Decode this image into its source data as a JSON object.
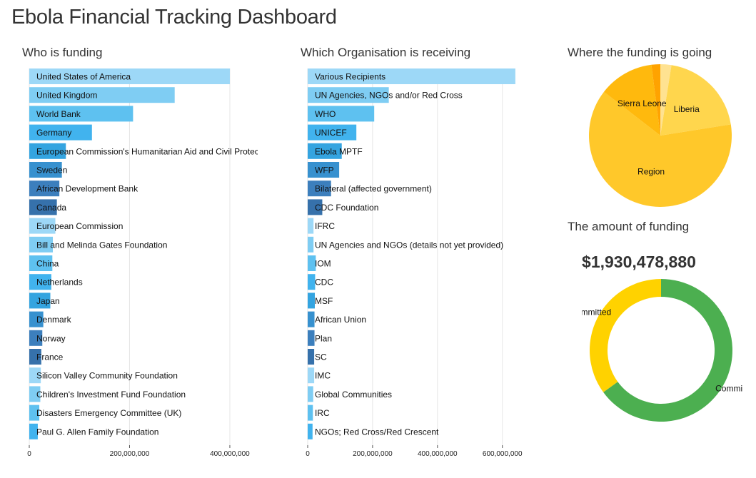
{
  "page": {
    "title": "Ebola Financial Tracking Dashboard",
    "funding_amount": "$1,930,478,880"
  },
  "sections": {
    "donors": "Who is funding",
    "recipients": "Which Organisation is receiving",
    "destinations": "Where the funding is going",
    "amount": "The amount of funding"
  },
  "chart_data": [
    {
      "type": "bar",
      "orientation": "horizontal",
      "title": "Who is funding",
      "categories": [
        "United States of America",
        "United Kingdom",
        "World Bank",
        "Germany",
        "European Commission's Humanitarian Aid and Civil Protection",
        "Sweden",
        "African Development Bank",
        "Canada",
        "European Commission",
        "Bill and Melinda Gates Foundation",
        "China",
        "Netherlands",
        "Japan",
        "Denmark",
        "Norway",
        "France",
        "Silicon Valley Community Foundation",
        "Children's Investment Fund Foundation",
        "Disasters Emergency Committee (UK)",
        "Paul G. Allen Family Foundation"
      ],
      "values": [
        400000000,
        290000000,
        207000000,
        125000000,
        73000000,
        65000000,
        60000000,
        55000000,
        52000000,
        47000000,
        46000000,
        44000000,
        42000000,
        28000000,
        26000000,
        24000000,
        23000000,
        22000000,
        20000000,
        17000000
      ],
      "bar_colors": [
        "#9dd8f7",
        "#7fcdf3",
        "#5ec1f0",
        "#41b3ee",
        "#34a4e0",
        "#3791cf",
        "#3c7fbd",
        "#3671ab",
        "#9dd8f7",
        "#7fcdf3",
        "#5ec1f0",
        "#41b3ee",
        "#34a4e0",
        "#3791cf",
        "#3c7fbd",
        "#3671ab",
        "#9dd8f7",
        "#7fcdf3",
        "#5ec1f0",
        "#41b3ee"
      ],
      "xlim": [
        0,
        420000000
      ],
      "xticks": [
        0,
        200000000,
        400000000
      ],
      "xtick_labels": [
        "0",
        "200,000,000",
        "400,000,000"
      ],
      "grid": true
    },
    {
      "type": "bar",
      "orientation": "horizontal",
      "title": "Which Organisation is receiving",
      "categories": [
        "Various Recipients",
        "UN Agencies, NGOs and/or Red Cross",
        "WHO",
        "UNICEF",
        "Ebola MPTF",
        "WFP",
        "Bilateral (affected government)",
        "CDC Foundation",
        "IFRC",
        "UN Agencies and NGOs (details not yet provided)",
        "IOM",
        "CDC",
        "MSF",
        "African Union",
        "Plan",
        "SC",
        "IMC",
        "Global Communities",
        "IRC",
        "NGOs; Red Cross/Red Crescent"
      ],
      "values": [
        640000000,
        250000000,
        205000000,
        150000000,
        105000000,
        97000000,
        72000000,
        45000000,
        18000000,
        18000000,
        25000000,
        23000000,
        22000000,
        21000000,
        21000000,
        20000000,
        20000000,
        17000000,
        16000000,
        15000000
      ],
      "bar_colors": [
        "#9dd8f7",
        "#7fcdf3",
        "#5ec1f0",
        "#41b3ee",
        "#34a4e0",
        "#3791cf",
        "#3c7fbd",
        "#3671ab",
        "#9dd8f7",
        "#7fcdf3",
        "#5ec1f0",
        "#41b3ee",
        "#34a4e0",
        "#3791cf",
        "#3c7fbd",
        "#3671ab",
        "#9dd8f7",
        "#7fcdf3",
        "#5ec1f0",
        "#41b3ee"
      ],
      "xlim": [
        0,
        660000000
      ],
      "xticks": [
        0,
        200000000,
        400000000,
        600000000
      ],
      "xtick_labels": [
        "0",
        "200,000,000",
        "400,000,000",
        "600,000,000"
      ],
      "grid": true
    },
    {
      "type": "pie",
      "title": "Where the funding is going",
      "slices": [
        {
          "label": "",
          "value": 2.5,
          "color": "#ffe291"
        },
        {
          "label": "Liberia",
          "value": 20,
          "color": "#ffd64d"
        },
        {
          "label": "Region",
          "value": 63,
          "color": "#ffc82a"
        },
        {
          "label": "Sierra Leone",
          "value": 12.5,
          "color": "#ffb90d"
        },
        {
          "label": "",
          "value": 2,
          "color": "#ffa300"
        }
      ]
    },
    {
      "type": "pie",
      "variant": "donut",
      "title": "The amount of funding",
      "slices": [
        {
          "label": "Committed",
          "value": 65,
          "color": "#4caf50"
        },
        {
          "label": "Uncommitted",
          "value": 35,
          "color": "#ffd200"
        }
      ]
    }
  ]
}
